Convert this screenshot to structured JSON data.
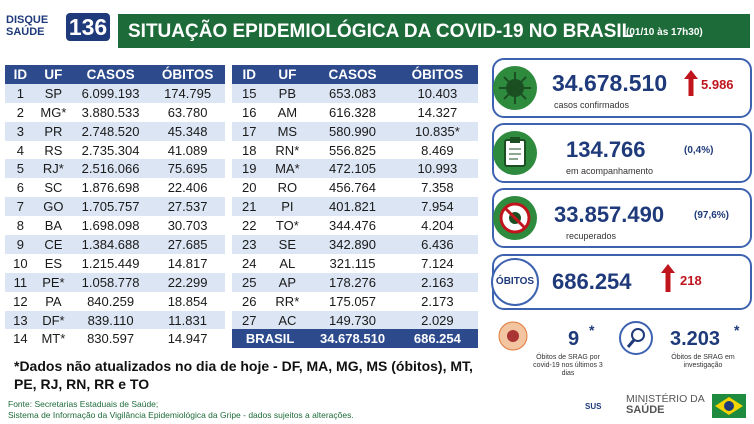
{
  "header": {
    "logo_top": "DISQUE",
    "logo_bottom": "SAÚDE",
    "logo_number": "136",
    "title": "SITUAÇÃO EPIDEMIOLÓGICA DA COVID-19 NO BRASIL",
    "date": "(01/10 às 17h30)"
  },
  "tables": [
    {
      "columns": [
        "ID",
        "UF",
        "CASOS",
        "ÓBITOS"
      ],
      "rows": [
        [
          "1",
          "SP",
          "6.099.193",
          "174.795"
        ],
        [
          "2",
          "MG*",
          "3.880.533",
          "63.780"
        ],
        [
          "3",
          "PR",
          "2.748.520",
          "45.348"
        ],
        [
          "4",
          "RS",
          "2.735.304",
          "41.089"
        ],
        [
          "5",
          "RJ*",
          "2.516.066",
          "75.695"
        ],
        [
          "6",
          "SC",
          "1.876.698",
          "22.406"
        ],
        [
          "7",
          "GO",
          "1.705.757",
          "27.537"
        ],
        [
          "8",
          "BA",
          "1.698.098",
          "30.703"
        ],
        [
          "9",
          "CE",
          "1.384.688",
          "27.685"
        ],
        [
          "10",
          "ES",
          "1.215.449",
          "14.817"
        ],
        [
          "11",
          "PE*",
          "1.058.778",
          "22.299"
        ],
        [
          "12",
          "PA",
          "840.259",
          "18.854"
        ],
        [
          "13",
          "DF*",
          "839.110",
          "11.831"
        ],
        [
          "14",
          "MT*",
          "830.597",
          "14.947"
        ]
      ]
    },
    {
      "columns": [
        "ID",
        "UF",
        "CASOS",
        "ÓBITOS"
      ],
      "rows": [
        [
          "15",
          "PB",
          "653.083",
          "10.403"
        ],
        [
          "16",
          "AM",
          "616.328",
          "14.327"
        ],
        [
          "17",
          "MS",
          "580.990",
          "10.835*"
        ],
        [
          "18",
          "RN*",
          "556.825",
          "8.469"
        ],
        [
          "19",
          "MA*",
          "472.105",
          "10.993"
        ],
        [
          "20",
          "RO",
          "456.764",
          "7.358"
        ],
        [
          "21",
          "PI",
          "401.821",
          "7.954"
        ],
        [
          "22",
          "TO*",
          "344.476",
          "4.204"
        ],
        [
          "23",
          "SE",
          "342.890",
          "6.436"
        ],
        [
          "24",
          "AL",
          "321.115",
          "7.124"
        ],
        [
          "25",
          "AP",
          "178.276",
          "2.163"
        ],
        [
          "26",
          "RR*",
          "175.057",
          "2.173"
        ],
        [
          "27",
          "AC",
          "149.730",
          "2.029"
        ]
      ],
      "total": [
        "BRASIL",
        "34.678.510",
        "686.254"
      ]
    }
  ],
  "stats": {
    "confirmed": {
      "value": "34.678.510",
      "increase": "5.986",
      "label": "casos confirmados"
    },
    "monitoring": {
      "value": "134.766",
      "percent": "(0,4%)",
      "label": "em acompanhamento"
    },
    "recovered": {
      "value": "33.857.490",
      "percent": "(97,6%)",
      "label": "recuperados"
    },
    "deaths": {
      "label": "ÓBITOS",
      "value": "686.254",
      "increase": "218"
    },
    "srag_covid": {
      "value": "9",
      "mark": "*",
      "label": "Óbitos de SRAG por covid-19 nos últimos 3 dias"
    },
    "srag_investigation": {
      "value": "3.203",
      "mark": "*",
      "label": "Óbitos de SRAG em investigação"
    }
  },
  "footnote": "*Dados não atualizados no dia de hoje - DF, MA, MG, MS (óbitos), MT, PE, RJ, RN, RR e TO",
  "source": [
    "Fonte: Secretarias Estaduais de Saúde;",
    "Sistema de Informação da Vigilância Epidemiológica da Gripe - dados sujeitos a alterações."
  ],
  "footer": {
    "sus": "SUS",
    "ministry": "MINISTÉRIO DA",
    "health": "SAÚDE"
  }
}
